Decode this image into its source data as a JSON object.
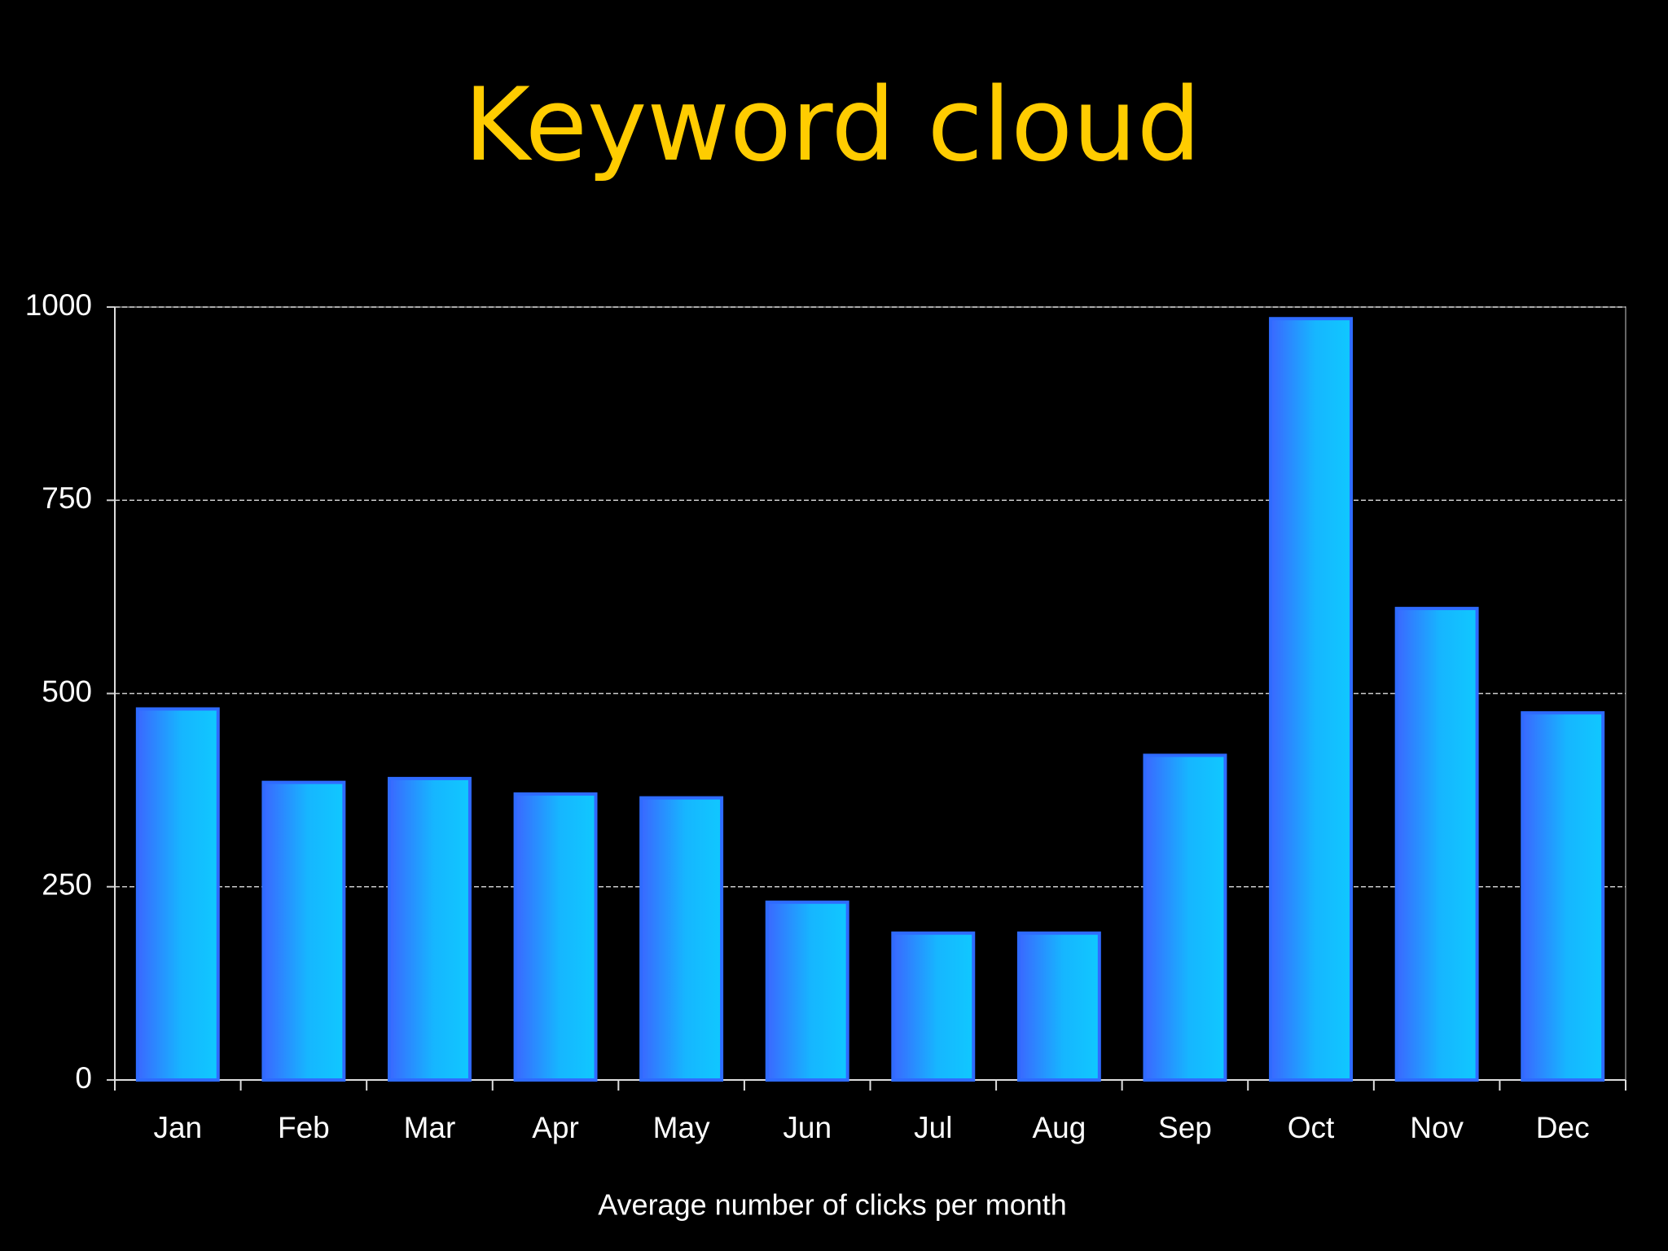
{
  "chart_data": {
    "type": "bar",
    "title": "Keyword cloud",
    "x_label": "Average number of clicks per month",
    "categories": [
      "Jan",
      "Feb",
      "Mar",
      "Apr",
      "May",
      "Jun",
      "Jul",
      "Aug",
      "Sep",
      "Oct",
      "Nov",
      "Dec"
    ],
    "values": [
      480,
      385,
      390,
      370,
      365,
      230,
      190,
      190,
      420,
      985,
      610,
      475
    ],
    "color": "#2f6bff",
    "ylim": [
      0,
      1000
    ],
    "yticks": [
      0,
      250,
      500,
      750,
      1000
    ],
    "grid": true
  }
}
